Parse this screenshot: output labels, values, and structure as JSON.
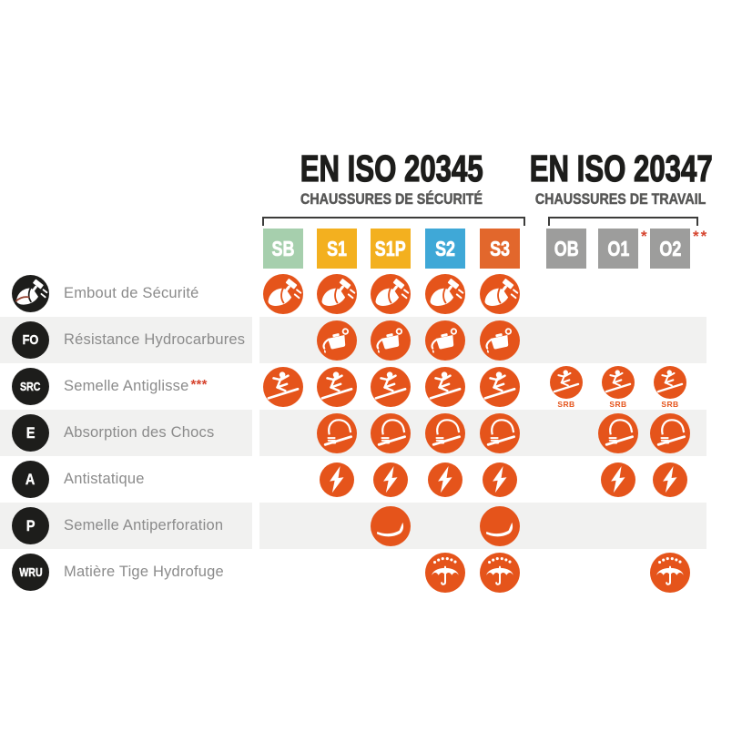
{
  "colors": {
    "icon_orange": "#e5541b",
    "badge_black": "#1d1d1b",
    "band_gray": "#f1f1f0",
    "label_gray": "#8b8b8b",
    "subtitle_gray": "#575756",
    "asterisk_red": "#d6452f",
    "col_sb_green": "#a6cfad",
    "col_yellow": "#f3b01f",
    "col_blue": "#3fa8d7",
    "col_s3_orange": "#e2672c",
    "col_gray": "#9d9d9c"
  },
  "groups": [
    {
      "title": "EN ISO 20345",
      "subtitle": "CHAUSSURES DE SÉCURITÉ"
    },
    {
      "title": "EN ISO 20347",
      "subtitle": "CHAUSSURES DE TRAVAIL"
    }
  ],
  "columns": [
    {
      "code": "SB",
      "color": "#a6cfad",
      "asterisks": ""
    },
    {
      "code": "S1",
      "color": "#f3b01f",
      "asterisks": ""
    },
    {
      "code": "S1P",
      "color": "#f3b01f",
      "asterisks": ""
    },
    {
      "code": "S2",
      "color": "#3fa8d7",
      "asterisks": ""
    },
    {
      "code": "S3",
      "color": "#e2672c",
      "asterisks": ""
    },
    {
      "code": "OB",
      "color": "#9d9d9c",
      "asterisks": ""
    },
    {
      "code": "O1",
      "color": "#9d9d9c",
      "asterisks": "*"
    },
    {
      "code": "O2",
      "color": "#9d9d9c",
      "asterisks": "**"
    }
  ],
  "rows": [
    {
      "badge": "",
      "label": "Embout de Sécurité",
      "label_suffix": "",
      "icon": "toe-cap",
      "cells": [
        1,
        1,
        1,
        1,
        1,
        0,
        0,
        0
      ],
      "sub": ""
    },
    {
      "badge": "FO",
      "label": "Résistance Hydrocarbures",
      "label_suffix": "",
      "icon": "oil-can",
      "cells": [
        0,
        1,
        1,
        1,
        1,
        0,
        0,
        0
      ],
      "sub": ""
    },
    {
      "badge": "SRC",
      "label": "Semelle Antiglisse",
      "label_suffix": "***",
      "icon": "slip",
      "cells": [
        1,
        1,
        1,
        1,
        1,
        2,
        2,
        2
      ],
      "sub": "SRB"
    },
    {
      "badge": "E",
      "label": "Absorption des Chocs",
      "label_suffix": "",
      "icon": "shock",
      "cells": [
        0,
        1,
        1,
        1,
        1,
        0,
        1,
        1
      ],
      "sub": ""
    },
    {
      "badge": "A",
      "label": "Antistatique",
      "label_suffix": "",
      "icon": "bolt",
      "cells": [
        0,
        1,
        1,
        1,
        1,
        0,
        1,
        1
      ],
      "sub": "",
      "icon_size": 38
    },
    {
      "badge": "P",
      "label": "Semelle Antiperforation",
      "label_suffix": "",
      "icon": "midsole",
      "cells": [
        0,
        0,
        1,
        0,
        1,
        0,
        0,
        0
      ],
      "sub": ""
    },
    {
      "badge": "WRU",
      "label": "Matière Tige Hydrofuge",
      "label_suffix": "",
      "icon": "umbrella",
      "cells": [
        0,
        0,
        0,
        1,
        1,
        0,
        0,
        1
      ],
      "sub": ""
    }
  ]
}
